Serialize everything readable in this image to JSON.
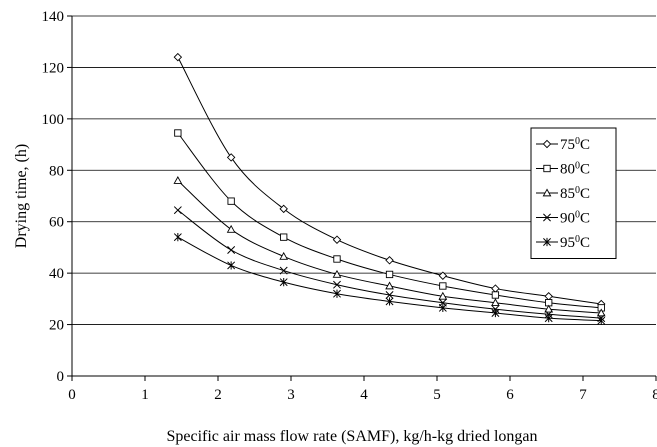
{
  "chart_data": {
    "type": "line",
    "title": "",
    "xlabel": "Specific air mass flow rate (SAMF), kg/h-kg dried longan",
    "ylabel": "Drying time, (h)",
    "xlim": [
      0,
      8
    ],
    "ylim": [
      0,
      140
    ],
    "x_ticks": [
      "0",
      "1",
      "2",
      "3",
      "4",
      "5",
      "6",
      "7",
      "8"
    ],
    "y_ticks": [
      "0",
      "20",
      "40",
      "60",
      "80",
      "100",
      "120",
      "140"
    ],
    "grid": "horizontal",
    "legend_position": "right",
    "x": [
      1.45,
      2.18,
      2.9,
      3.63,
      4.35,
      5.08,
      5.8,
      6.53,
      7.25
    ],
    "series": [
      {
        "name": "75",
        "unit": "C",
        "marker": "diamond",
        "values": [
          124,
          85,
          65,
          53,
          45,
          39,
          34,
          31,
          28
        ]
      },
      {
        "name": "80",
        "unit": "C",
        "marker": "square",
        "values": [
          94.5,
          68,
          54,
          45.5,
          39.5,
          35,
          31.5,
          28.5,
          26.5
        ]
      },
      {
        "name": "85",
        "unit": "C",
        "marker": "triangle",
        "values": [
          76,
          57,
          46.5,
          39.5,
          35,
          31,
          28.5,
          26,
          24.5
        ]
      },
      {
        "name": "90",
        "unit": "C",
        "marker": "x",
        "values": [
          64.5,
          49,
          41,
          35.5,
          31.5,
          28.5,
          26,
          24,
          22.5
        ]
      },
      {
        "name": "95",
        "unit": "C",
        "marker": "star",
        "values": [
          54,
          43,
          36.5,
          32,
          29,
          26.5,
          24.5,
          22.5,
          21.5
        ]
      }
    ],
    "legend_degree_symbol": "0"
  }
}
